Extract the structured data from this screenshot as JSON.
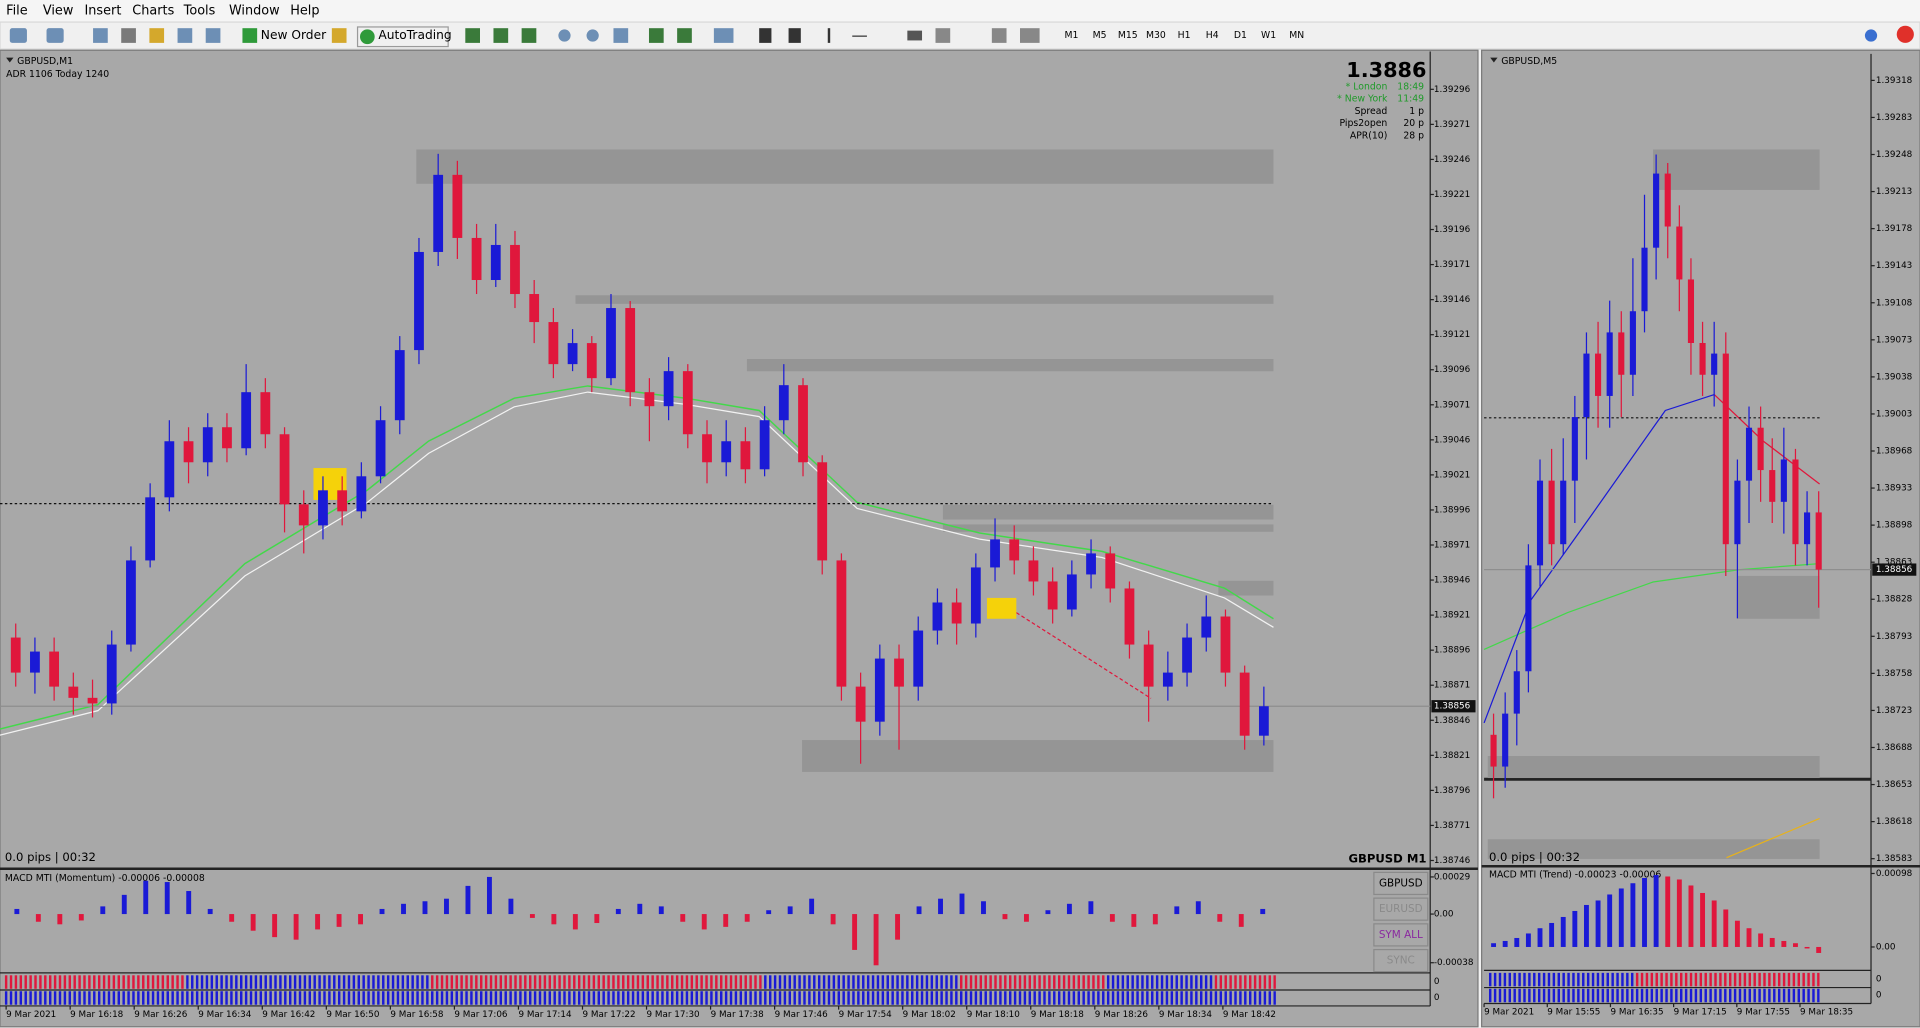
{
  "menu": [
    "File",
    "View",
    "Insert",
    "Charts",
    "Tools",
    "Window",
    "Help"
  ],
  "toolbar": {
    "new_order": "New Order",
    "autotrading": "AutoTrading",
    "timeframes": [
      "M1",
      "M5",
      "M15",
      "M30",
      "H1",
      "H4",
      "D1",
      "W1",
      "MN"
    ]
  },
  "windows": [
    {
      "title": "GBPUSD,M1",
      "adr": "ADR 1106  Today 1240",
      "price": 1.3886,
      "sessions": [
        {
          "name": "* London",
          "time": "18:49"
        },
        {
          "name": "* New York",
          "time": "11:49"
        }
      ],
      "stats": [
        {
          "name": "Spread",
          "value": "1 p"
        },
        {
          "name": "Pips2open",
          "value": "20 p"
        },
        {
          "name": "APR(10)",
          "value": "28 p"
        }
      ],
      "status": "0.0 pips | 00:32",
      "label": "GBPUSD M1",
      "ylim": [
        1.38741,
        1.39323
      ],
      "yticks": [
        1.39296,
        1.39271,
        1.39246,
        1.39221,
        1.39196,
        1.39171,
        1.39146,
        1.39121,
        1.39096,
        1.39071,
        1.39046,
        1.39021,
        1.38996,
        1.38971,
        1.38946,
        1.38921,
        1.38896,
        1.38871,
        1.38846,
        1.38821,
        1.38796,
        1.38771,
        1.38746
      ],
      "bid": 1.38856,
      "candles": {
        "open": [
          1.38905,
          1.3888,
          1.38895,
          1.3887,
          1.38862,
          1.38858,
          1.389,
          1.3896,
          1.39005,
          1.39045,
          1.3903,
          1.39055,
          1.3904,
          1.3908,
          1.3905,
          1.39,
          1.38985,
          1.3901,
          1.38995,
          1.3902,
          1.3906,
          1.3911,
          1.3918,
          1.39235,
          1.3919,
          1.3916,
          1.39185,
          1.3915,
          1.3913,
          1.391,
          1.39115,
          1.3909,
          1.3914,
          1.3908,
          1.3907,
          1.39095,
          1.3905,
          1.3903,
          1.39045,
          1.39025,
          1.3906,
          1.39085,
          1.3903,
          1.3896,
          1.3887,
          1.38845,
          1.3889,
          1.3887,
          1.3891,
          1.3893,
          1.38915,
          1.38955,
          1.38975,
          1.3896,
          1.38945,
          1.38925,
          1.3895,
          1.38965,
          1.3894,
          1.389,
          1.3887,
          1.3888,
          1.38905,
          1.3892,
          1.3888,
          1.38835
        ],
        "high": [
          1.38915,
          1.38905,
          1.38905,
          1.3888,
          1.38875,
          1.3891,
          1.3897,
          1.39015,
          1.3906,
          1.39055,
          1.39065,
          1.39065,
          1.391,
          1.3909,
          1.39055,
          1.3901,
          1.3902,
          1.3902,
          1.3903,
          1.3907,
          1.3912,
          1.3919,
          1.3925,
          1.39245,
          1.392,
          1.392,
          1.39195,
          1.3916,
          1.3914,
          1.39125,
          1.3912,
          1.3915,
          1.39145,
          1.3909,
          1.39105,
          1.391,
          1.3906,
          1.3906,
          1.39055,
          1.3907,
          1.391,
          1.3909,
          1.39035,
          1.38965,
          1.3888,
          1.389,
          1.389,
          1.3892,
          1.3894,
          1.3894,
          1.38965,
          1.3899,
          1.38985,
          1.3897,
          1.38955,
          1.3896,
          1.38975,
          1.3897,
          1.38945,
          1.3891,
          1.38895,
          1.38915,
          1.38935,
          1.38925,
          1.38885,
          1.3887
        ],
        "low": [
          1.3887,
          1.38865,
          1.3886,
          1.3885,
          1.38848,
          1.3885,
          1.38895,
          1.38955,
          1.38995,
          1.39015,
          1.3902,
          1.3903,
          1.39035,
          1.3904,
          1.3898,
          1.38965,
          1.38975,
          1.38985,
          1.3899,
          1.39015,
          1.3905,
          1.391,
          1.3917,
          1.39175,
          1.3915,
          1.39155,
          1.3914,
          1.39115,
          1.3909,
          1.39095,
          1.3908,
          1.39085,
          1.3907,
          1.39045,
          1.3906,
          1.3904,
          1.39015,
          1.3902,
          1.39015,
          1.3902,
          1.3905,
          1.3902,
          1.3895,
          1.3886,
          1.38815,
          1.38835,
          1.38825,
          1.3886,
          1.389,
          1.389,
          1.38905,
          1.38945,
          1.3895,
          1.38935,
          1.38915,
          1.3892,
          1.3894,
          1.3893,
          1.3889,
          1.38845,
          1.3886,
          1.3887,
          1.38895,
          1.3887,
          1.38825,
          1.38828
        ],
        "close": [
          1.3888,
          1.38895,
          1.3887,
          1.38862,
          1.38858,
          1.389,
          1.3896,
          1.39005,
          1.39045,
          1.3903,
          1.39055,
          1.3904,
          1.3908,
          1.3905,
          1.39,
          1.38985,
          1.3901,
          1.38995,
          1.3902,
          1.3906,
          1.3911,
          1.3918,
          1.39235,
          1.3919,
          1.3916,
          1.39185,
          1.3915,
          1.3913,
          1.391,
          1.39115,
          1.3909,
          1.3914,
          1.3908,
          1.3907,
          1.39095,
          1.3905,
          1.3903,
          1.39045,
          1.39025,
          1.3906,
          1.39085,
          1.3903,
          1.3896,
          1.3887,
          1.38845,
          1.3889,
          1.3887,
          1.3891,
          1.3893,
          1.38915,
          1.38955,
          1.38975,
          1.3896,
          1.38945,
          1.38925,
          1.3895,
          1.38965,
          1.3894,
          1.389,
          1.3887,
          1.3888,
          1.38905,
          1.3892,
          1.3888,
          1.38835,
          1.38856
        ]
      },
      "times": [
        "9 Mar 2021",
        "9 Mar 16:18",
        "9 Mar 16:26",
        "9 Mar 16:34",
        "9 Mar 16:42",
        "9 Mar 16:50",
        "9 Mar 16:58",
        "9 Mar 17:06",
        "9 Mar 17:14",
        "9 Mar 17:22",
        "9 Mar 17:30",
        "9 Mar 17:38",
        "9 Mar 17:46",
        "9 Mar 17:54",
        "9 Mar 18:02",
        "9 Mar 18:10",
        "9 Mar 18:18",
        "9 Mar 18:26",
        "9 Mar 18:34",
        "9 Mar 18:42"
      ],
      "macd": {
        "label": "MACD MTI (Momentum) -0.00006 -0.00008",
        "ylim": [
          -0.00044,
          0.000335
        ],
        "yticks": [
          0.00029,
          {
            "value": 0,
            "label": "0.00"
          },
          -0.00038
        ],
        "values": [
          4e-05,
          -6e-05,
          -8e-05,
          -5e-05,
          6e-05,
          0.00015,
          0.00026,
          0.00025,
          0.00018,
          4e-05,
          -6e-05,
          -0.00013,
          -0.00018,
          -0.0002,
          -0.00012,
          -0.0001,
          -8e-05,
          4e-05,
          8e-05,
          0.0001,
          0.00012,
          0.00022,
          0.00029,
          0.00012,
          -3e-05,
          -8e-05,
          -0.00012,
          -7e-05,
          4e-05,
          8e-05,
          6e-05,
          -6e-05,
          -0.00012,
          -0.0001,
          -6e-05,
          3e-05,
          6e-05,
          0.00012,
          -8e-05,
          -0.00028,
          -0.0004,
          -0.0002,
          6e-05,
          0.00012,
          0.00016,
          0.0001,
          -4e-05,
          -6e-05,
          3e-05,
          8e-05,
          0.0001,
          -6e-05,
          -0.0001,
          -8e-05,
          6e-05,
          0.0001,
          -6e-05,
          -0.0001,
          4e-05
        ]
      },
      "buttons": [
        "GBPUSD",
        "EURUSD",
        "SYM ALL",
        "SYNC"
      ],
      "strip_labels": [
        "0",
        "0"
      ]
    },
    {
      "title": "GBPUSD,M5",
      "status": "0.0 pips | 00:32",
      "ylim": [
        1.38577,
        1.39343
      ],
      "yticks": [
        1.39318,
        1.39283,
        1.39248,
        1.39213,
        1.39178,
        1.39143,
        1.39108,
        1.39073,
        1.39038,
        1.39003,
        1.38968,
        1.38933,
        1.38898,
        1.38863,
        1.38828,
        1.38793,
        1.38758,
        1.38723,
        1.38688,
        1.38653,
        1.38618,
        1.38583
      ],
      "bid": 1.38856,
      "candles": {
        "open": [
          1.387,
          1.3867,
          1.3872,
          1.3876,
          1.3886,
          1.3894,
          1.3888,
          1.3894,
          1.39,
          1.3906,
          1.3902,
          1.3908,
          1.3904,
          1.391,
          1.3916,
          1.3923,
          1.3918,
          1.3913,
          1.3907,
          1.3904,
          1.3906,
          1.3888,
          1.3894,
          1.3899,
          1.3895,
          1.3892,
          1.3896,
          1.3888,
          1.3891
        ],
        "high": [
          1.3872,
          1.3874,
          1.3878,
          1.3888,
          1.3896,
          1.3897,
          1.3898,
          1.3902,
          1.3908,
          1.3909,
          1.3911,
          1.391,
          1.3915,
          1.3921,
          1.39248,
          1.3924,
          1.392,
          1.3915,
          1.3909,
          1.3909,
          1.3908,
          1.3896,
          1.3901,
          1.3901,
          1.3898,
          1.3899,
          1.3897,
          1.3893,
          1.3893
        ],
        "low": [
          1.3864,
          1.3865,
          1.3869,
          1.3874,
          1.3884,
          1.3886,
          1.3887,
          1.389,
          1.3896,
          1.3899,
          1.3899,
          1.39,
          1.3902,
          1.3908,
          1.3913,
          1.3915,
          1.391,
          1.3904,
          1.3902,
          1.3901,
          1.3885,
          1.3881,
          1.389,
          1.3892,
          1.389,
          1.3889,
          1.3886,
          1.3886,
          1.3882
        ],
        "close": [
          1.3867,
          1.3872,
          1.3876,
          1.3886,
          1.3894,
          1.3888,
          1.3894,
          1.39,
          1.3906,
          1.3902,
          1.3908,
          1.3904,
          1.391,
          1.3916,
          1.3923,
          1.3918,
          1.3913,
          1.3907,
          1.3904,
          1.3906,
          1.3888,
          1.3894,
          1.3899,
          1.3895,
          1.3892,
          1.3896,
          1.3888,
          1.3891,
          1.38856
        ]
      },
      "times": [
        "9 Mar 2021",
        "9 Mar 15:55",
        "9 Mar 16:35",
        "9 Mar 17:15",
        "9 Mar 17:55",
        "9 Mar 18:35"
      ],
      "macd": {
        "label": "MACD MTI (Trend) -0.00023 -0.00006",
        "ylim": [
          -0.00028,
          0.00106
        ],
        "yticks": [
          0.00098,
          {
            "value": 0,
            "label": "0.00"
          }
        ],
        "values": [
          5e-05,
          8e-05,
          0.00012,
          0.00018,
          0.00025,
          0.00032,
          0.0004,
          0.00048,
          0.00056,
          0.00062,
          0.0007,
          0.00078,
          0.00085,
          0.00092,
          0.00096,
          0.00094,
          0.0009,
          0.00082,
          0.00072,
          0.00062,
          0.0005,
          0.00035,
          0.00025,
          0.00018,
          0.00012,
          8e-05,
          5e-05,
          -2e-05,
          -8e-05
        ]
      },
      "strip_labels": [
        "0",
        "0"
      ]
    }
  ]
}
